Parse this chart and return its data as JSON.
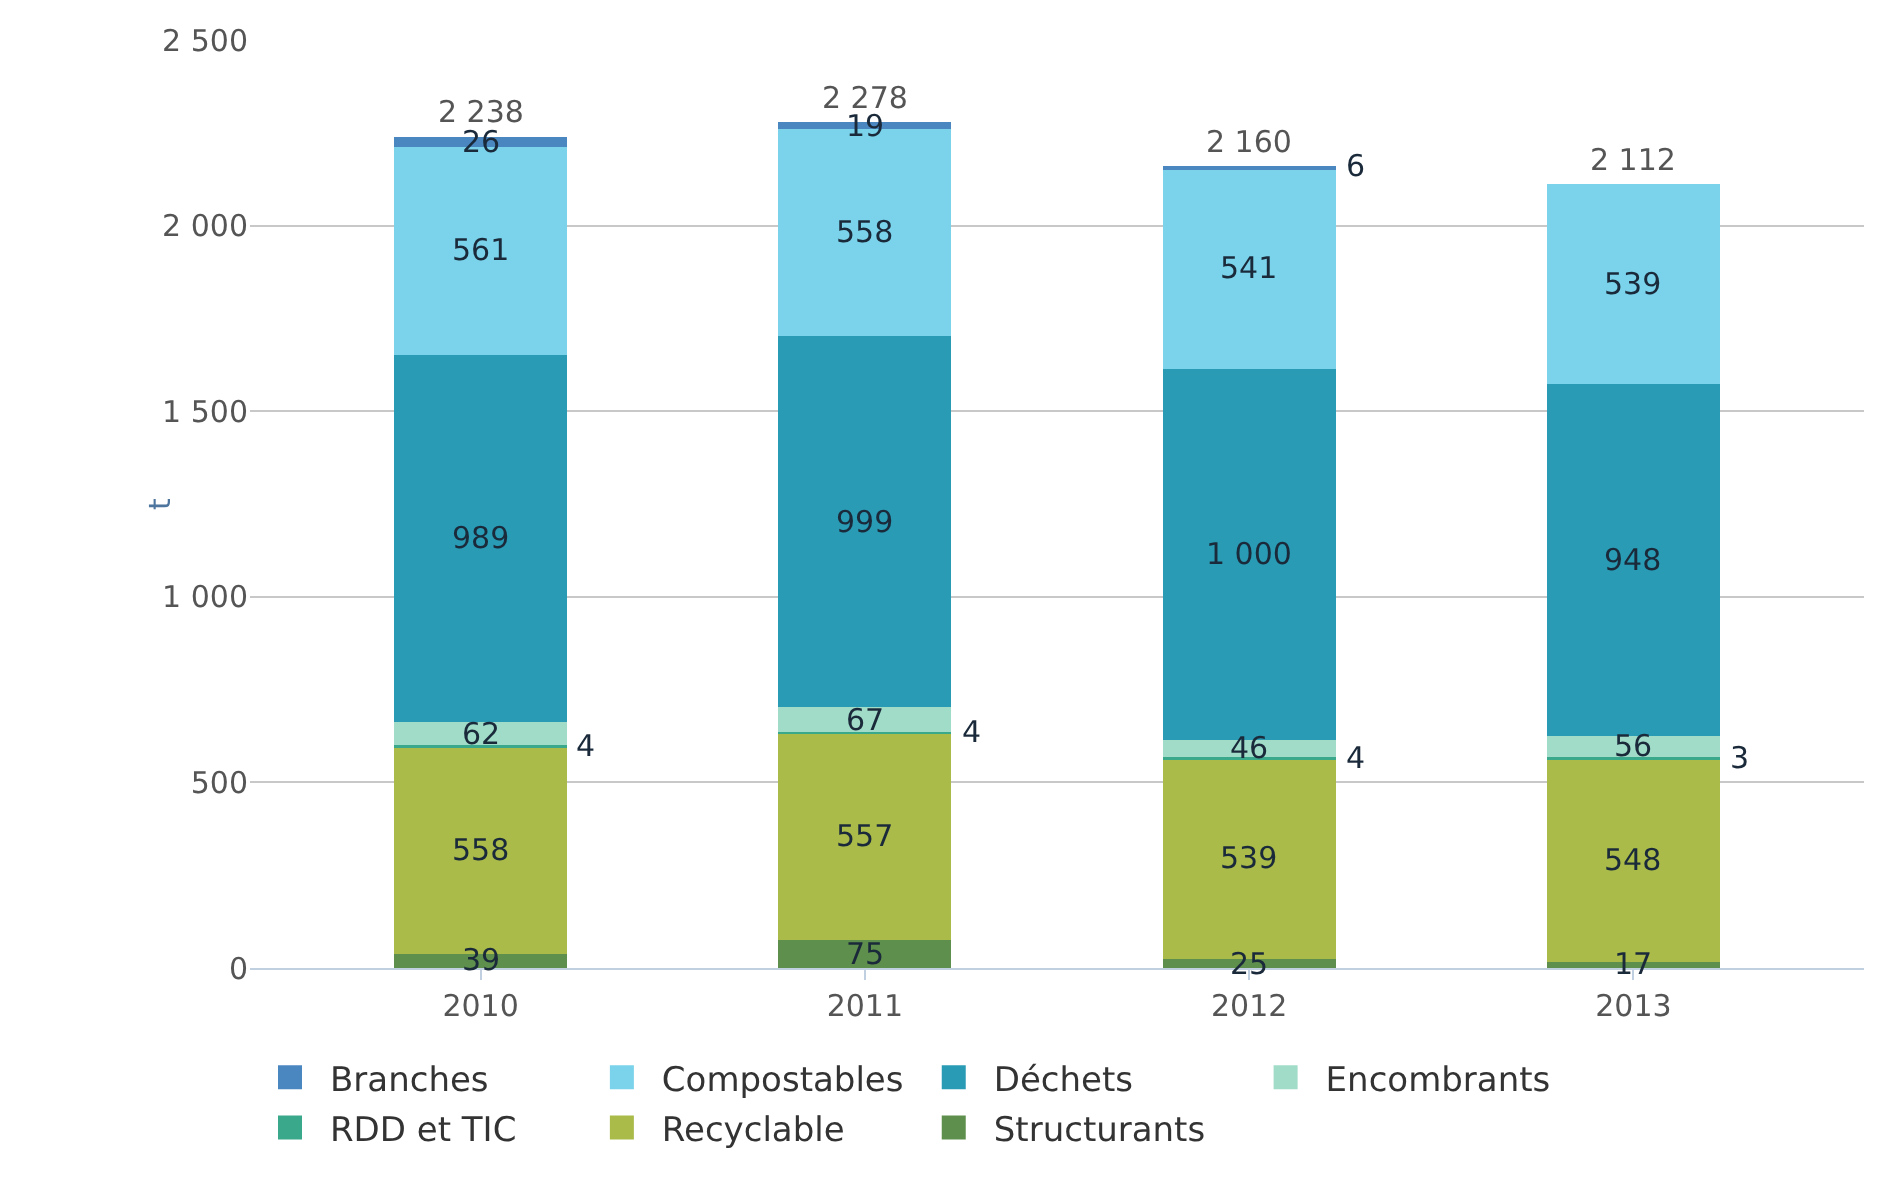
{
  "chart_data": {
    "type": "bar",
    "stacked": true,
    "ylabel": "t",
    "categories": [
      "2010",
      "2011",
      "2012",
      "2013"
    ],
    "series": [
      {
        "name": "Structurants",
        "color": "#5f8f4c",
        "values": [
          39,
          75,
          25,
          17
        ],
        "value_labels": [
          "39",
          "75",
          "25",
          "17"
        ]
      },
      {
        "name": "Recyclable",
        "color": "#aabb4a",
        "values": [
          558,
          557,
          539,
          548
        ],
        "value_labels": [
          "558",
          "557",
          "539",
          "548"
        ]
      },
      {
        "name": "RDD et TIC",
        "color": "#3aa88a",
        "values": [
          4,
          4,
          4,
          3
        ],
        "value_labels": [
          "4",
          "4",
          "4",
          "3"
        ]
      },
      {
        "name": "Encombrants",
        "color": "#a0dcc8",
        "values": [
          62,
          67,
          46,
          56
        ],
        "value_labels": [
          "62",
          "67",
          "46",
          "56"
        ]
      },
      {
        "name": "Déchets",
        "color": "#2a9bb5",
        "values": [
          989,
          999,
          1000,
          948
        ],
        "value_labels": [
          "989",
          "999",
          "1 000",
          "948"
        ]
      },
      {
        "name": "Compostables",
        "color": "#7ad3ea",
        "values": [
          561,
          558,
          541,
          539
        ],
        "value_labels": [
          "561",
          "558",
          "541",
          "539"
        ]
      },
      {
        "name": "Branches",
        "color": "#4a86c0",
        "values": [
          26,
          19,
          6,
          null
        ],
        "value_labels": [
          "26",
          "19",
          "6",
          null
        ]
      }
    ],
    "totals": [
      "2 238",
      "2 278",
      "2 160",
      "2 112"
    ],
    "ylim": [
      0,
      2500
    ],
    "yticks": [
      0,
      {
        "value": 500,
        "label": "500"
      },
      {
        "value": 1000,
        "label": "1 000"
      },
      {
        "value": 1500,
        "label": "1 500"
      },
      {
        "value": 2000,
        "label": "2 000"
      },
      {
        "value": 2500,
        "label": "2 500"
      }
    ],
    "grid": "y",
    "legend": "bottom"
  }
}
